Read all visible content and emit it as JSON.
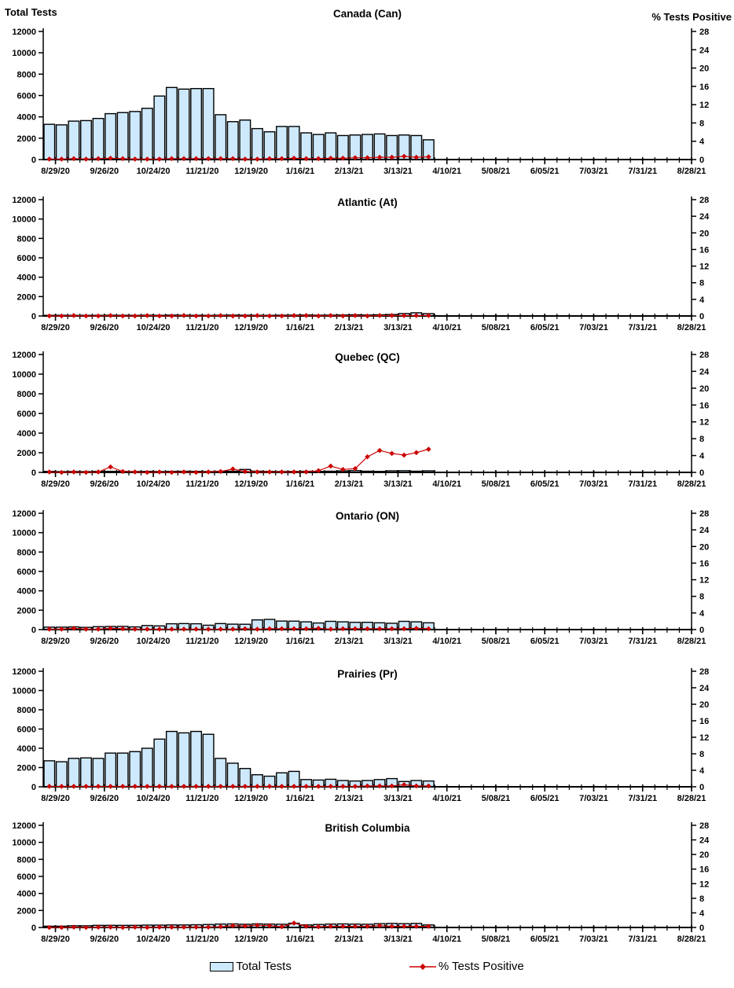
{
  "header": {
    "left_axis_title": "Total Tests",
    "right_axis_title": "% Tests Positive"
  },
  "legend": {
    "bar_label": "Total Tests",
    "line_label": "% Tests Positive"
  },
  "colors": {
    "bar_fill": "#CDE9FB",
    "bar_stroke": "#000000",
    "line_color": "#CC0000",
    "text": "#000000"
  },
  "axes": {
    "left_max": 12000,
    "right_max": 28,
    "left_ticks": [
      0,
      2000,
      4000,
      6000,
      8000,
      10000,
      12000
    ],
    "right_ticks": [
      0,
      4,
      8,
      12,
      16,
      20,
      24,
      28
    ],
    "total_slots": 53,
    "x_tick_weeks": [
      0,
      4,
      8,
      12,
      16,
      20,
      24,
      28,
      32,
      36,
      40,
      44,
      48,
      52
    ],
    "x_tick_labels": [
      "8/29/20",
      "9/26/20",
      "10/24/20",
      "11/21/20",
      "12/19/20",
      "1/16/21",
      "2/13/21",
      "3/13/21",
      "4/10/21",
      "5/08/21",
      "6/05/21",
      "7/03/21",
      "7/31/21",
      "8/28/21"
    ]
  },
  "categories": [
    "8/29/20",
    "9/5/20",
    "9/12/20",
    "9/19/20",
    "9/26/20",
    "10/3/20",
    "10/10/20",
    "10/17/20",
    "10/24/20",
    "10/31/20",
    "11/7/20",
    "11/14/20",
    "11/21/20",
    "11/28/20",
    "12/5/20",
    "12/12/20",
    "12/19/20",
    "12/26/20",
    "1/2/21",
    "1/9/21",
    "1/16/21",
    "1/23/21",
    "1/30/21",
    "2/6/21",
    "2/13/21",
    "2/20/21",
    "2/27/21",
    "3/6/21",
    "3/13/21",
    "3/20/21",
    "3/27/21",
    "4/3/21"
  ],
  "chart_data": [
    {
      "type": "bar+line",
      "id": "canada",
      "title": "Canada (Can)",
      "ylim_left": [
        0,
        12000
      ],
      "ylim_right": [
        0,
        28
      ],
      "series": [
        {
          "name": "Total Tests",
          "axis": "left",
          "values": [
            3300,
            3250,
            3600,
            3650,
            3850,
            4300,
            4400,
            4500,
            4800,
            5950,
            6750,
            6600,
            6650,
            6650,
            4200,
            3550,
            3700,
            2900,
            2600,
            3100,
            3100,
            2500,
            2350,
            2500,
            2250,
            2300,
            2350,
            2400,
            2250,
            2300,
            2250,
            1850
          ]
        },
        {
          "name": "% Tests Positive",
          "axis": "right",
          "values": [
            0.1,
            0.1,
            0.2,
            0.1,
            0.2,
            0.3,
            0.2,
            0.1,
            0.1,
            0.1,
            0.2,
            0.2,
            0.2,
            0.2,
            0.2,
            0.2,
            0.1,
            0.1,
            0.2,
            0.2,
            0.3,
            0.2,
            0.2,
            0.3,
            0.3,
            0.4,
            0.4,
            0.5,
            0.5,
            0.7,
            0.5,
            0.6
          ]
        }
      ]
    },
    {
      "type": "bar+line",
      "id": "atlantic",
      "title": "Atlantic (At)",
      "ylim_left": [
        0,
        12000
      ],
      "ylim_right": [
        0,
        28
      ],
      "series": [
        {
          "name": "Total Tests",
          "axis": "left",
          "values": [
            60,
            70,
            60,
            50,
            60,
            80,
            70,
            60,
            80,
            70,
            90,
            80,
            70,
            60,
            80,
            90,
            80,
            70,
            60,
            80,
            90,
            100,
            80,
            90,
            100,
            120,
            100,
            120,
            150,
            250,
            330,
            240
          ]
        },
        {
          "name": "% Tests Positive",
          "axis": "right",
          "values": [
            0,
            0,
            0.1,
            0,
            0,
            0.1,
            0,
            0,
            0.1,
            0,
            0,
            0.1,
            0,
            0,
            0.1,
            0,
            0,
            0.1,
            0,
            0,
            0.1,
            0.1,
            0,
            0.1,
            0,
            0.1,
            0,
            0.1,
            0.1,
            0.1,
            0.1,
            0.1
          ]
        }
      ]
    },
    {
      "type": "bar+line",
      "id": "quebec",
      "title": "Quebec (QC)",
      "ylim_left": [
        0,
        12000
      ],
      "ylim_right": [
        0,
        28
      ],
      "series": [
        {
          "name": "Total Tests",
          "axis": "left",
          "values": [
            100,
            80,
            90,
            80,
            100,
            110,
            100,
            90,
            100,
            90,
            100,
            110,
            100,
            90,
            110,
            120,
            300,
            120,
            100,
            90,
            100,
            110,
            100,
            120,
            150,
            180,
            120,
            100,
            160,
            170,
            120,
            160
          ]
        },
        {
          "name": "% Tests Positive",
          "axis": "right",
          "values": [
            0.1,
            0,
            0.1,
            0,
            0.1,
            1.3,
            0.2,
            0.1,
            0,
            0.1,
            0,
            0.1,
            0,
            0.1,
            0.2,
            0.8,
            0.2,
            0.1,
            0.1,
            0.1,
            0.1,
            0.1,
            0.4,
            1.5,
            0.7,
            0.9,
            3.7,
            5.2,
            4.5,
            4.1,
            4.7,
            5.5
          ]
        }
      ]
    },
    {
      "type": "bar+line",
      "id": "ontario",
      "title": "Ontario (ON)",
      "ylim_left": [
        0,
        12000
      ],
      "ylim_right": [
        0,
        28
      ],
      "series": [
        {
          "name": "Total Tests",
          "axis": "left",
          "values": [
            250,
            250,
            280,
            230,
            300,
            320,
            330,
            280,
            420,
            380,
            600,
            620,
            600,
            450,
            620,
            560,
            550,
            1000,
            1050,
            880,
            870,
            800,
            680,
            850,
            800,
            750,
            750,
            700,
            650,
            850,
            800,
            700
          ]
        },
        {
          "name": "% Tests Positive",
          "axis": "right",
          "values": [
            0.1,
            0.1,
            0.3,
            0.1,
            0.1,
            0.3,
            0.2,
            0.1,
            0.1,
            0.1,
            0.1,
            0.1,
            0.1,
            0.1,
            0.1,
            0.1,
            0.2,
            0.1,
            0.2,
            0.2,
            0.2,
            0.2,
            0.3,
            0.1,
            0.2,
            0.2,
            0.2,
            0.2,
            0.2,
            0.2,
            0.3,
            0.2
          ]
        }
      ]
    },
    {
      "type": "bar+line",
      "id": "prairies",
      "title": "Prairies (Pr)",
      "ylim_left": [
        0,
        12000
      ],
      "ylim_right": [
        0,
        28
      ],
      "series": [
        {
          "name": "Total Tests",
          "axis": "left",
          "values": [
            2700,
            2600,
            2950,
            3000,
            2950,
            3500,
            3500,
            3650,
            4000,
            4950,
            5750,
            5600,
            5750,
            5450,
            2950,
            2450,
            1900,
            1250,
            1100,
            1450,
            1600,
            750,
            700,
            780,
            650,
            600,
            650,
            750,
            850,
            550,
            650,
            600
          ]
        },
        {
          "name": "% Tests Positive",
          "axis": "right",
          "values": [
            0.1,
            0.1,
            0.1,
            0.1,
            0.1,
            0.1,
            0.1,
            0.1,
            0.1,
            0.1,
            0.1,
            0.1,
            0.1,
            0.1,
            0.1,
            0.1,
            0.1,
            0.1,
            0.1,
            0.1,
            0.1,
            0.1,
            0.1,
            0.1,
            0.1,
            0.1,
            0.2,
            0.2,
            0.2,
            0.5,
            0.2,
            0.2
          ]
        }
      ]
    },
    {
      "type": "bar+line",
      "id": "bc",
      "title": "British Columbia",
      "ylim_left": [
        0,
        12000
      ],
      "ylim_right": [
        0,
        28
      ],
      "series": [
        {
          "name": "Total Tests",
          "axis": "left",
          "values": [
            150,
            150,
            200,
            200,
            250,
            250,
            250,
            250,
            280,
            280,
            300,
            300,
            320,
            350,
            400,
            420,
            380,
            420,
            400,
            380,
            500,
            300,
            350,
            400,
            420,
            400,
            380,
            450,
            480,
            450,
            480,
            300
          ]
        },
        {
          "name": "% Tests Positive",
          "axis": "right",
          "values": [
            0,
            0,
            0.1,
            0,
            0.1,
            0.1,
            0,
            0.1,
            0,
            0.1,
            0.1,
            0.1,
            0.1,
            0.1,
            0.2,
            0.5,
            0.4,
            0.6,
            0.5,
            0.2,
            1.2,
            0.3,
            0.2,
            0.3,
            0.3,
            0.3,
            0.3,
            0.5,
            0.3,
            0.3,
            0.3,
            0.3
          ]
        }
      ]
    }
  ]
}
